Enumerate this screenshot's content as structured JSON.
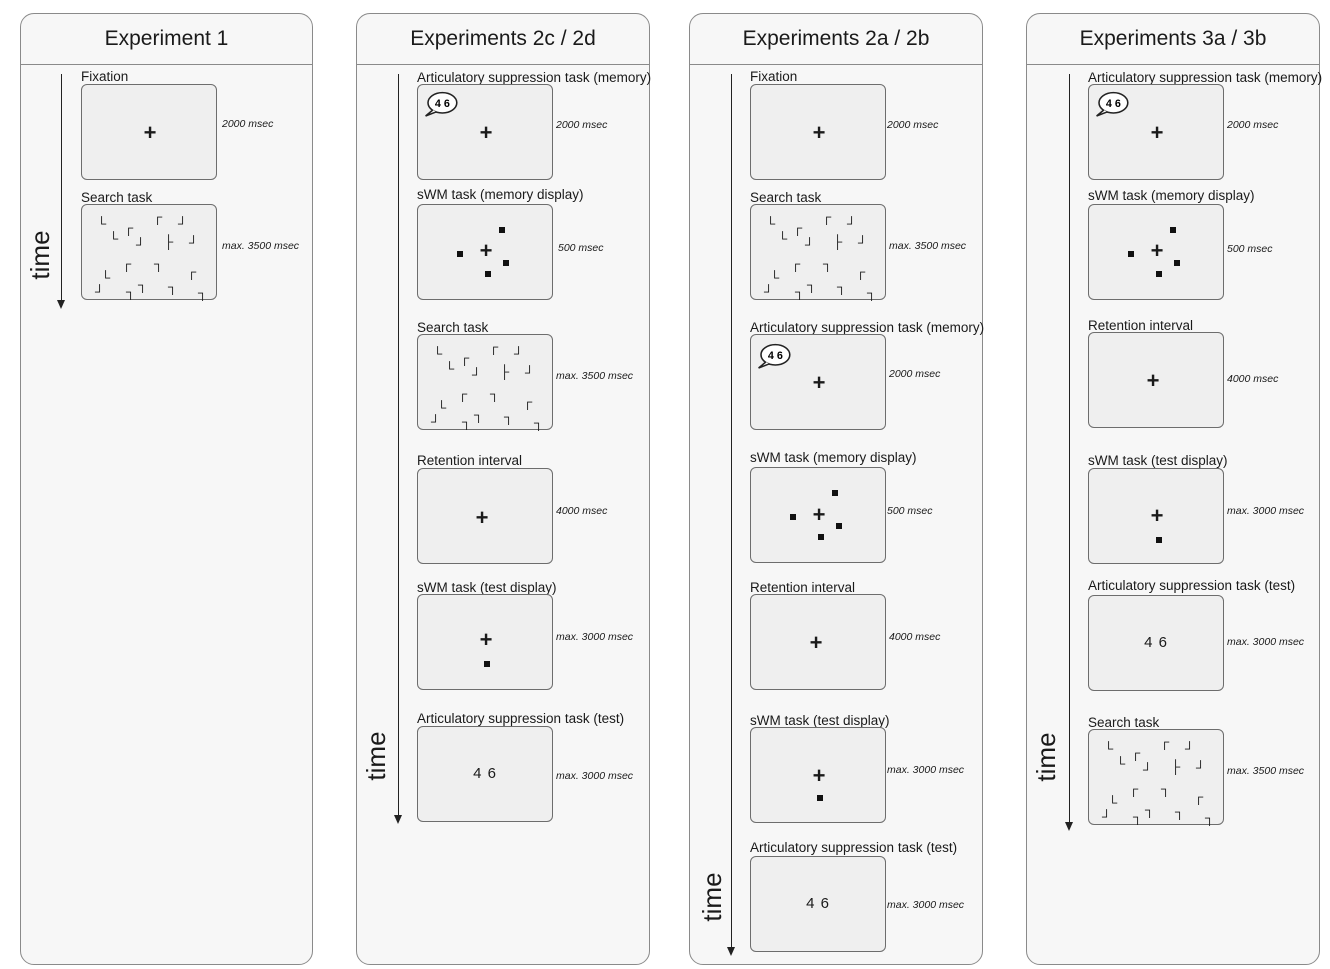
{
  "labels": {
    "time": "time",
    "fixation": "Fixation",
    "search": "Search task",
    "as_memory": "Articulatory suppression task (memory)",
    "swm_memory": "sWM task (memory display)",
    "retention": "Retention interval",
    "swm_test": "sWM task (test display)",
    "as_test": "Articulatory suppression task (test)"
  },
  "durations": {
    "d2000": "2000 msec",
    "d3500": "max. 3500 msec",
    "d500": "500 msec",
    "d4000": "4000 msec",
    "d3000": "max. 3000 msec"
  },
  "content": {
    "cross": "+",
    "bubble_digits": "4 6",
    "test_digits": "4 6"
  },
  "panels": [
    {
      "title": "Experiment 1"
    },
    {
      "title": "Experiments 2c / 2d"
    },
    {
      "title": "Experiments 2a / 2b"
    },
    {
      "title": "Experiments 3a / 3b"
    }
  ]
}
